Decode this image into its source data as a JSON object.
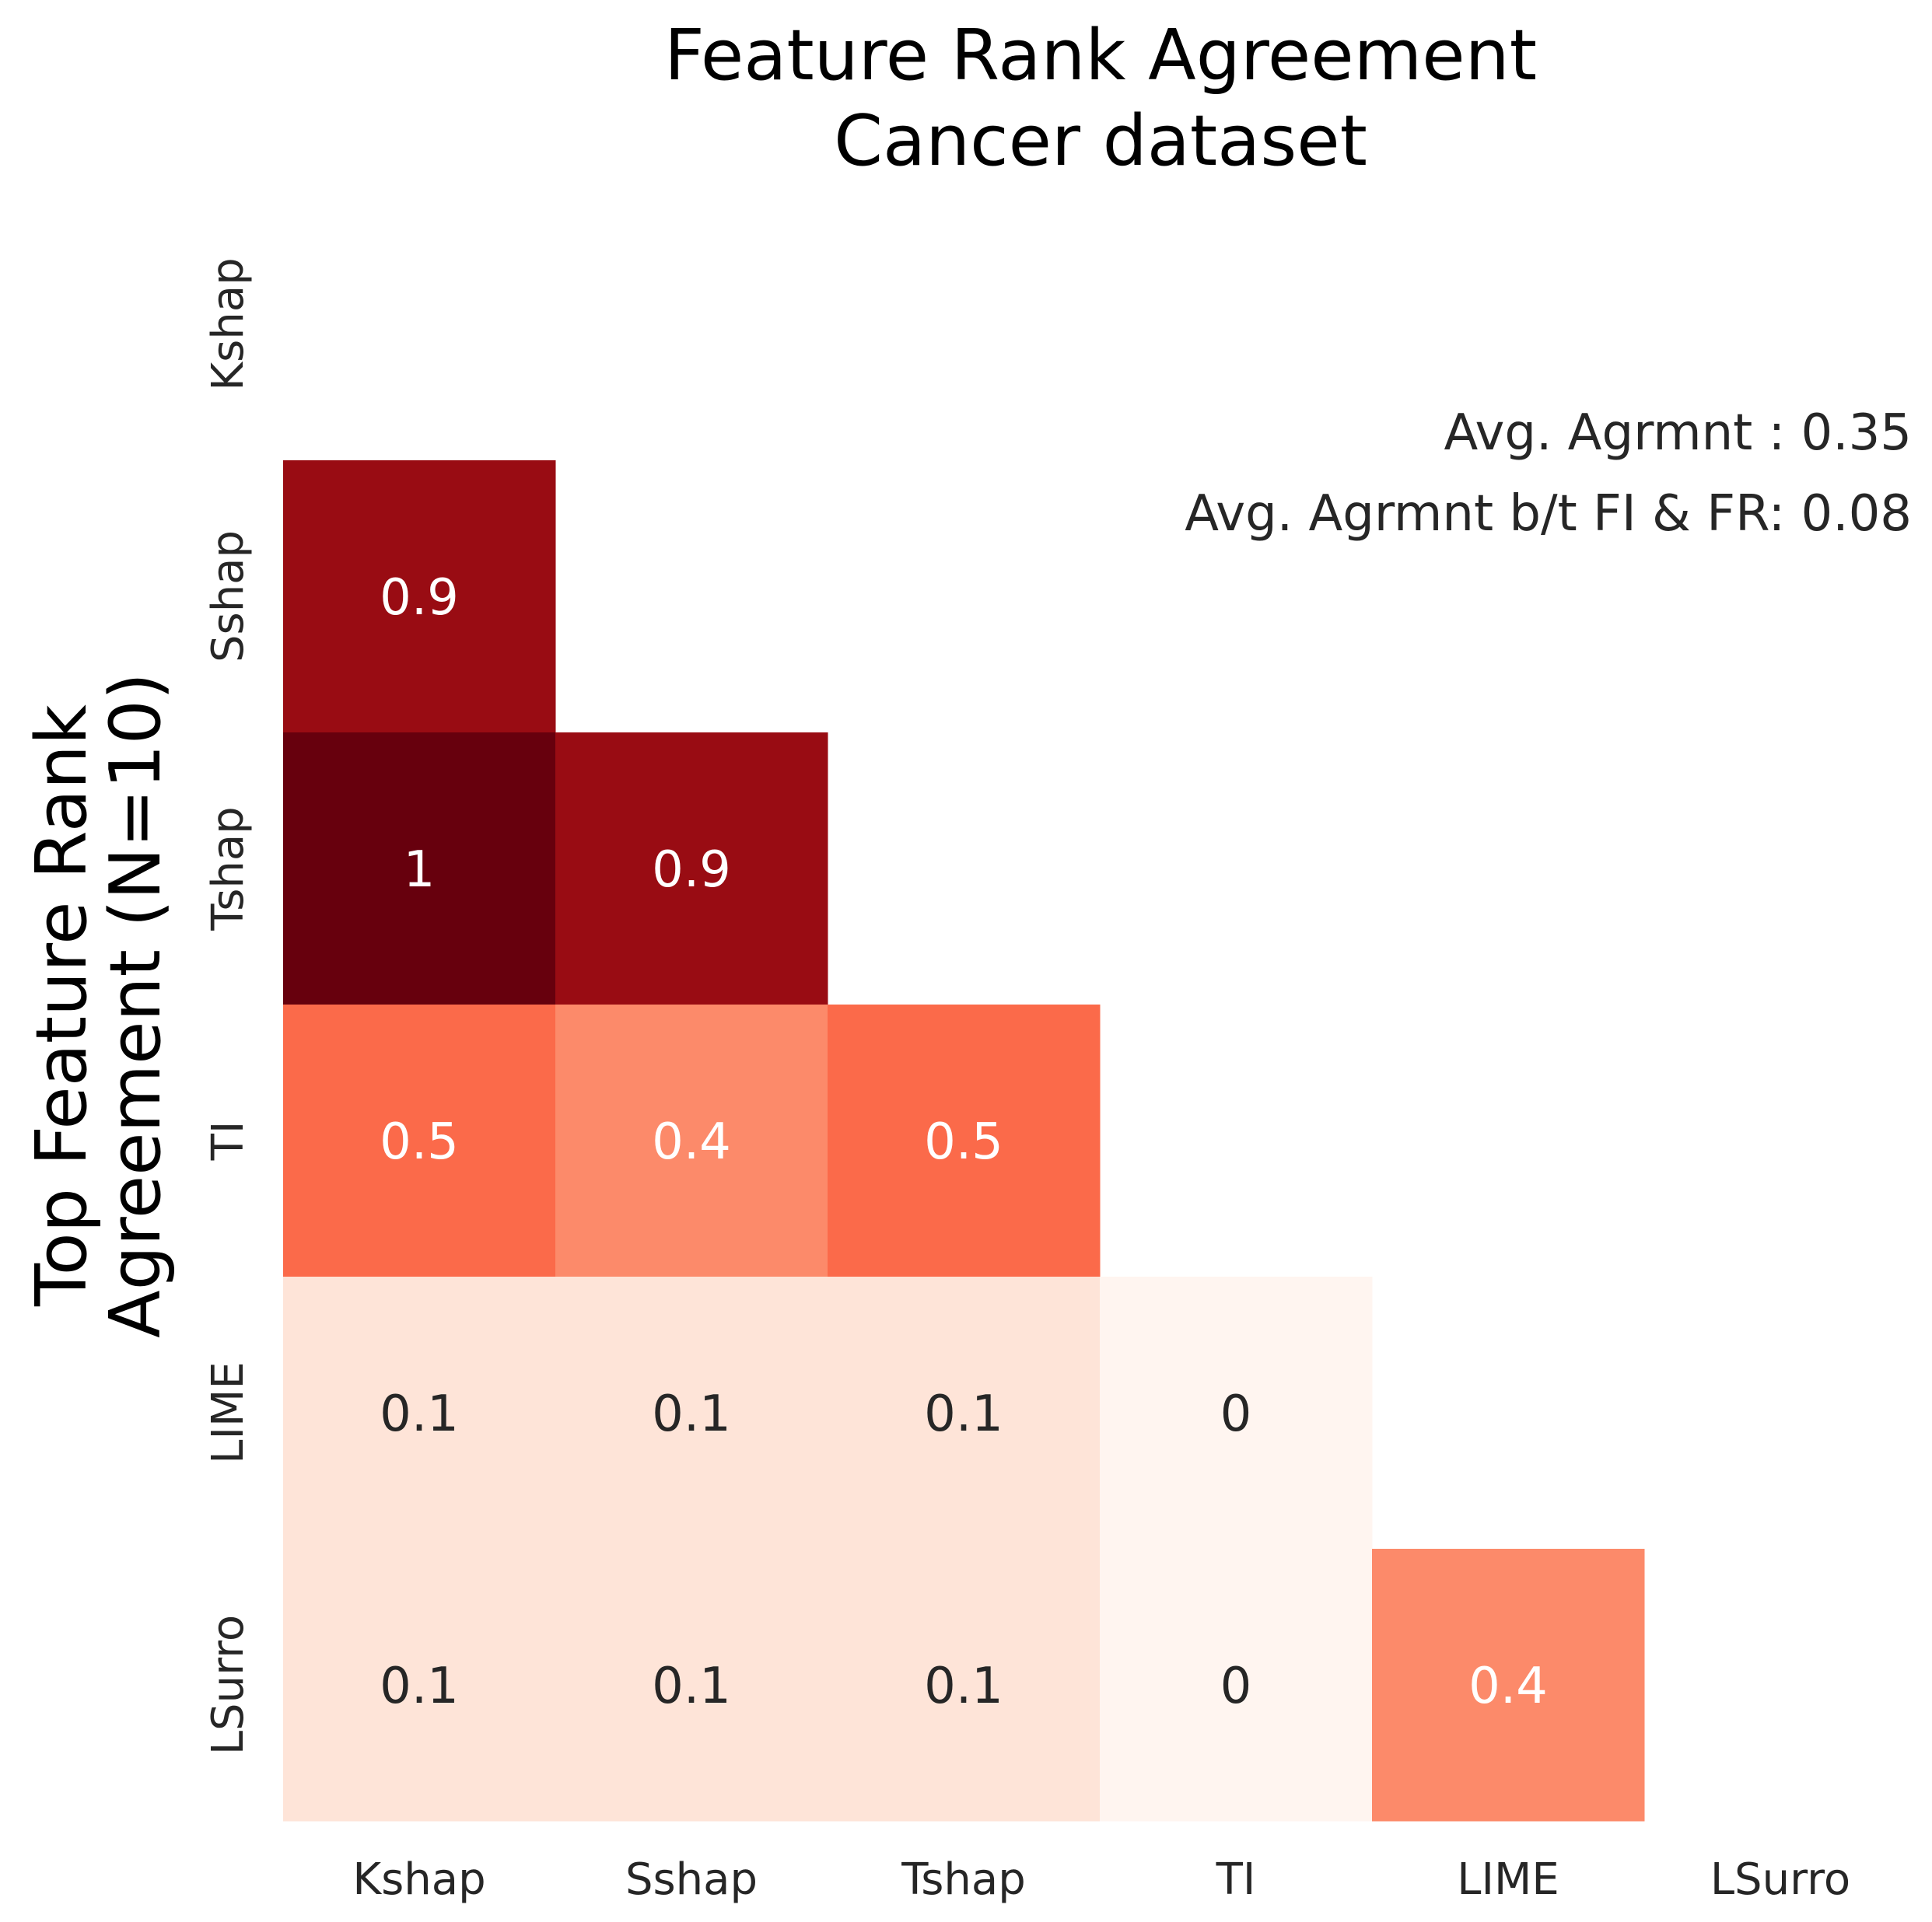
{
  "chart_data": {
    "type": "heatmap",
    "title_lines": [
      "Feature Rank Agreement",
      "Cancer dataset"
    ],
    "ylabel_lines": [
      "Top Feature Rank",
      "Agreement (N=10)"
    ],
    "xlabel": "",
    "row_labels": [
      "Kshap",
      "Sshap",
      "Tshap",
      "TI",
      "LIME",
      "LSurro"
    ],
    "col_labels": [
      "Kshap",
      "Sshap",
      "Tshap",
      "TI",
      "LIME",
      "LSurro"
    ],
    "mask": "upper triangle including diagonal",
    "colormap": "Reds",
    "vmin": 0,
    "vmax": 1,
    "colorbar": false,
    "values": [
      [
        null,
        null,
        null,
        null,
        null,
        null
      ],
      [
        0.9,
        null,
        null,
        null,
        null,
        null
      ],
      [
        1,
        0.9,
        null,
        null,
        null,
        null
      ],
      [
        0.5,
        0.4,
        0.5,
        null,
        null,
        null
      ],
      [
        0.1,
        0.1,
        0.1,
        0,
        null,
        null
      ],
      [
        0.1,
        0.1,
        0.1,
        0,
        0.4,
        null
      ]
    ],
    "cell_labels": [
      [
        null,
        null,
        null,
        null,
        null,
        null
      ],
      [
        "0.9",
        null,
        null,
        null,
        null,
        null
      ],
      [
        "1",
        "0.9",
        null,
        null,
        null,
        null
      ],
      [
        "0.5",
        "0.4",
        "0.5",
        null,
        null,
        null
      ],
      [
        "0.1",
        "0.1",
        "0.1",
        "0",
        null,
        null
      ],
      [
        "0.1",
        "0.1",
        "0.1",
        "0",
        "0.4",
        null
      ]
    ],
    "annotations": [
      "Avg. Agrmnt : 0.35",
      "Avg. Agrmnt b/t FI & FR: 0.08"
    ]
  }
}
